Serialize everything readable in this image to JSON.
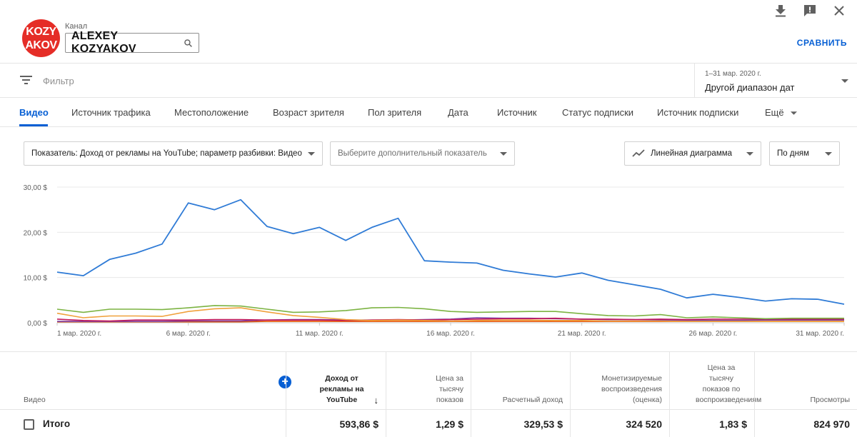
{
  "header": {
    "logo_lines": [
      "KOZY",
      "AKOV"
    ],
    "channel_caption": "Канал",
    "channel_name": "ALEXEY KOZYAKOV",
    "compare_label": "СРАВНИТЬ",
    "icons": [
      "download-icon",
      "feedback-icon",
      "close-icon"
    ]
  },
  "filter": {
    "label": "Фильтр",
    "date_range": "1–31 мар. 2020 г.",
    "date_mode": "Другой диапазон дат"
  },
  "tabs": [
    {
      "label": "Видео",
      "active": true
    },
    {
      "label": "Источник трафика"
    },
    {
      "label": "Местоположение"
    },
    {
      "label": "Возраст зрителя"
    },
    {
      "label": "Пол зрителя"
    },
    {
      "label": "Дата"
    },
    {
      "label": "Источник"
    },
    {
      "label": "Статус подписки"
    },
    {
      "label": "Источник подписки"
    },
    {
      "label": "Ещё"
    }
  ],
  "selectors": {
    "metric": "Показатель: Доход от рекламы на YouTube; параметр разбивки: Видео",
    "secondary_metric": "Выберите дополнительный показатель",
    "chart_type": "Линейная диаграмма",
    "granularity": "По дням"
  },
  "chart_data": {
    "type": "line",
    "ylim": [
      0,
      30
    ],
    "y_ticks": [
      "30,00 $",
      "20,00 $",
      "10,00 $",
      "0,00 $"
    ],
    "x_tick_labels": [
      "1 мар. 2020 г.",
      "6 мар. 2020 г.",
      "11 мар. 2020 г.",
      "16 мар. 2020 г.",
      "21 мар. 2020 г.",
      "26 мар. 2020 г.",
      "31 мар. 2020 г."
    ],
    "x_tick_days": [
      1,
      6,
      11,
      16,
      21,
      26,
      31
    ],
    "days": 31,
    "grid": true,
    "series": [
      {
        "color": "#2f7bd6",
        "values": [
          11.2,
          10.4,
          14.0,
          15.4,
          17.4,
          26.5,
          25.0,
          27.2,
          21.3,
          19.7,
          21.1,
          18.2,
          21.1,
          23.1,
          13.7,
          13.4,
          13.2,
          11.6,
          10.8,
          10.1,
          11.0,
          9.4,
          8.4,
          7.4,
          5.5,
          6.3,
          5.6,
          4.8,
          5.3,
          5.2,
          4.1
        ]
      },
      {
        "color": "#7cb342",
        "values": [
          3.0,
          2.3,
          3.0,
          3.0,
          2.9,
          3.3,
          3.8,
          3.7,
          3.0,
          2.3,
          2.4,
          2.7,
          3.3,
          3.4,
          3.1,
          2.5,
          2.3,
          2.4,
          2.5,
          2.5,
          2.0,
          1.6,
          1.5,
          1.8,
          1.1,
          1.3,
          1.1,
          0.9,
          1.0,
          1.0,
          1.0
        ]
      },
      {
        "color": "#f0a13c",
        "values": [
          2.1,
          1.1,
          1.5,
          1.5,
          1.4,
          2.5,
          3.1,
          3.3,
          2.4,
          1.6,
          1.2,
          0.7,
          0.5,
          0.6,
          0.5,
          0.4,
          0.5,
          0.6,
          0.6,
          0.5,
          0.5,
          0.4,
          0.4,
          0.4,
          0.3,
          0.3,
          0.3,
          0.3,
          0.3,
          0.3,
          0.3
        ]
      },
      {
        "color": "#c2185b",
        "values": [
          0.8,
          0.5,
          0.4,
          0.6,
          0.6,
          0.6,
          0.7,
          0.7,
          0.6,
          0.6,
          0.6,
          0.5,
          0.6,
          0.7,
          0.6,
          0.7,
          0.8,
          0.9,
          0.9,
          1.0,
          0.8,
          0.8,
          0.7,
          0.8,
          0.7,
          0.8,
          0.8,
          0.8,
          0.8,
          0.8,
          0.8
        ]
      },
      {
        "color": "#7b3fa6",
        "values": [
          0.3,
          0.3,
          0.3,
          0.3,
          0.3,
          0.4,
          0.4,
          0.4,
          0.6,
          0.7,
          0.7,
          0.6,
          0.6,
          0.6,
          0.7,
          0.8,
          1.1,
          1.0,
          1.0,
          0.9,
          0.8,
          0.7,
          0.7,
          0.6,
          0.5,
          0.5,
          0.5,
          0.6,
          0.6,
          0.6,
          0.6
        ]
      },
      {
        "color": "#e65100",
        "values": [
          0.2,
          0.2,
          0.2,
          0.2,
          0.2,
          0.2,
          0.2,
          0.2,
          0.3,
          0.3,
          0.3,
          0.3,
          0.3,
          0.3,
          0.3,
          0.3,
          0.3,
          0.3,
          0.3,
          0.3,
          0.3,
          0.3,
          0.3,
          0.3,
          0.3,
          0.3,
          0.3,
          0.3,
          0.3,
          0.3,
          0.3
        ]
      }
    ]
  },
  "table": {
    "columns": [
      {
        "label": "Видео"
      },
      {
        "label": "Доход от рекламы на YouTube",
        "sorted": true
      },
      {
        "label": "Цена за тысячу показов"
      },
      {
        "label": "Расчетный доход"
      },
      {
        "label": "Монетизируемые воспроизведения (оценка)"
      },
      {
        "label": "Цена за тысячу показов по воспроизведениям"
      },
      {
        "label": "Просмотры"
      }
    ],
    "total_label": "Итого",
    "totals": [
      "593,86 $",
      "1,29 $",
      "329,53 $",
      "324 520",
      "1,83 $",
      "824 970"
    ]
  },
  "colors": {
    "accent": "#065fd4",
    "logo": "#e52d27"
  }
}
